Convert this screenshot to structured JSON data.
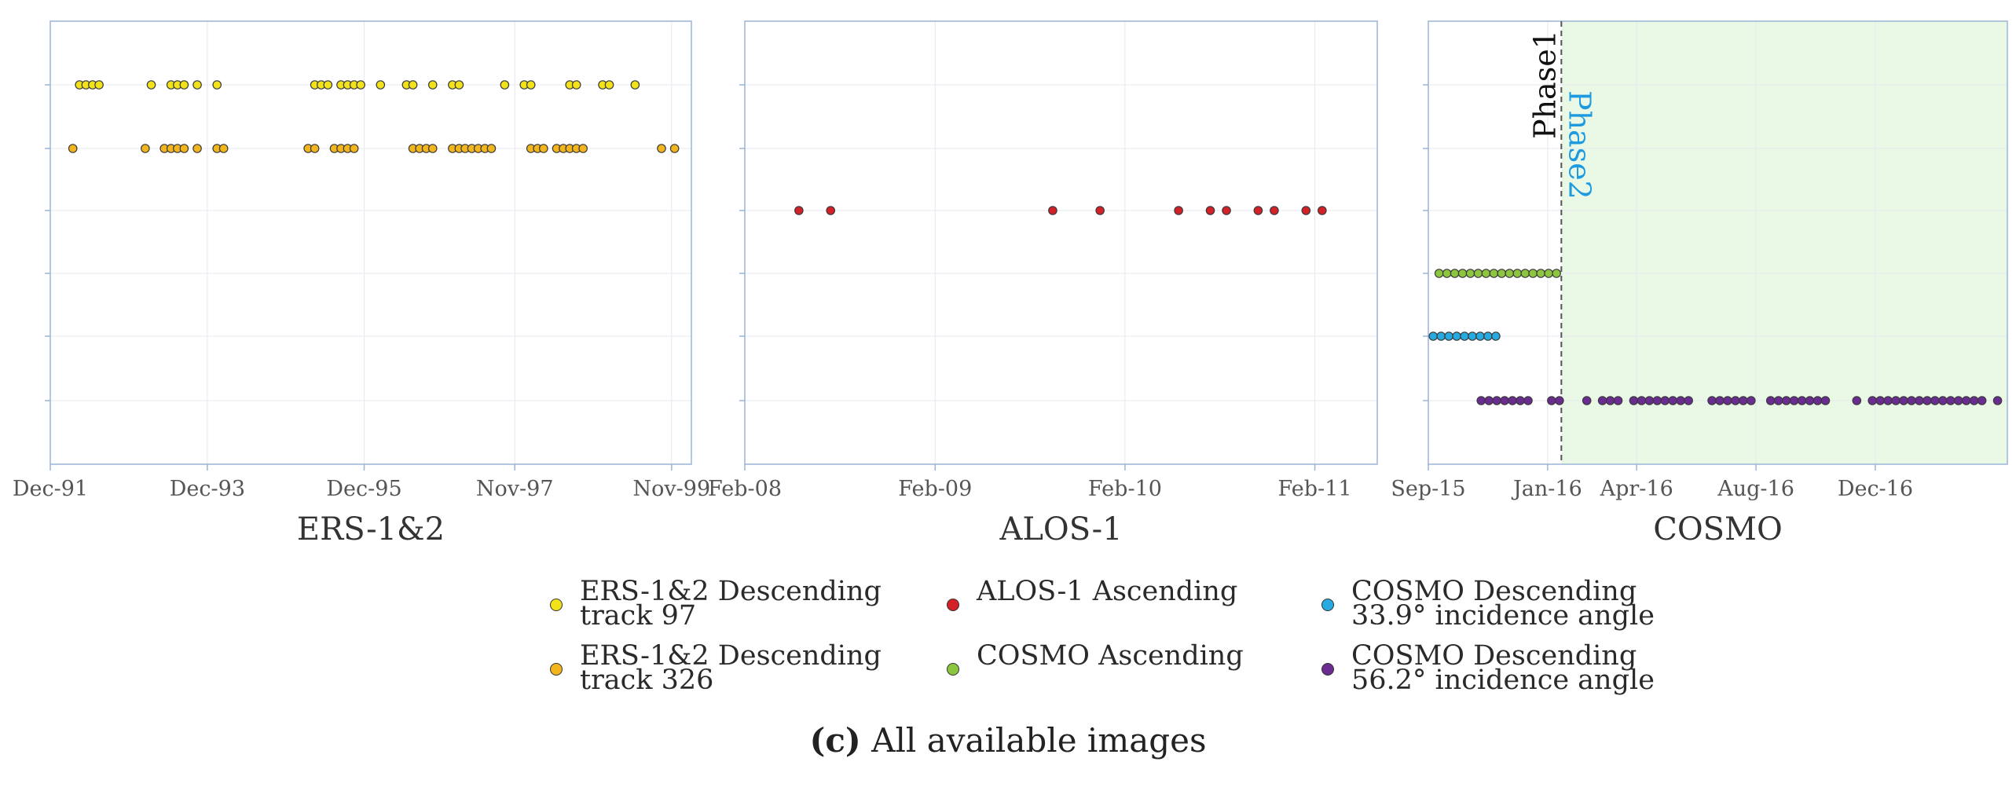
{
  "chart_data": [
    {
      "type": "scatter",
      "title": "ERS-1&2",
      "x_ticks": [
        "Dec-91",
        "Dec-93",
        "Dec-95",
        "Nov-97",
        "Nov-99"
      ],
      "xlim": [
        "1991-12",
        "2000-02"
      ],
      "series": [
        {
          "name": "ERS-1&2 Descending track 97",
          "row": 1,
          "color": "#f2e21a",
          "x": [
            "1992-04",
            "1992-05",
            "1992-06",
            "1992-07",
            "1993-03",
            "1993-06",
            "1993-07",
            "1993-08",
            "1993-10",
            "1994-01",
            "1995-04",
            "1995-05",
            "1995-06",
            "1995-08",
            "1995-09",
            "1995-10",
            "1995-11",
            "1996-02",
            "1996-06",
            "1996-07",
            "1996-10",
            "1997-01",
            "1997-02",
            "1997-09",
            "1997-12",
            "1998-01",
            "1998-07",
            "1998-08",
            "1998-12",
            "1999-01",
            "1999-05"
          ]
        },
        {
          "name": "ERS-1&2 Descending track 326",
          "row": 2,
          "color": "#f2b51e",
          "x": [
            "1992-03",
            "1993-02",
            "1993-05",
            "1993-06",
            "1993-07",
            "1993-08",
            "1993-10",
            "1994-01",
            "1994-02",
            "1995-03",
            "1995-04",
            "1995-07",
            "1995-08",
            "1995-09",
            "1995-10",
            "1996-07",
            "1996-08",
            "1996-09",
            "1996-10",
            "1997-01",
            "1997-02",
            "1997-03",
            "1997-04",
            "1997-05",
            "1997-06",
            "1997-07",
            "1998-01",
            "1998-02",
            "1998-03",
            "1998-05",
            "1998-06",
            "1998-07",
            "1998-08",
            "1998-09",
            "1999-09",
            "1999-11"
          ]
        }
      ]
    },
    {
      "type": "scatter",
      "title": "ALOS-1",
      "x_ticks": [
        "Feb-08",
        "Feb-09",
        "Feb-10",
        "Feb-11"
      ],
      "xlim": [
        "2008-02",
        "2011-06"
      ],
      "series": [
        {
          "name": "ALOS-1 Ascending",
          "row": 3,
          "color": "#d42027",
          "x": [
            "2008-05",
            "2008-07",
            "2009-09",
            "2009-12",
            "2010-05",
            "2010-07",
            "2010-08",
            "2010-10",
            "2010-11",
            "2011-01",
            "2011-02"
          ]
        }
      ]
    },
    {
      "type": "scatter",
      "title": "COSMO",
      "x_ticks": [
        "Sep-15",
        "Jan-16",
        "Apr-16",
        "Aug-16",
        "Dec-16"
      ],
      "xlim": [
        "2015-09-01",
        "2017-04-15"
      ],
      "phase_line": {
        "x": "2016-01-15",
        "labels": [
          "Phase1",
          "Phase2"
        ]
      },
      "phase2_shade_color": "#eaf8e6",
      "series": [
        {
          "name": "COSMO Ascending",
          "row": 4,
          "color": "#8cc63f",
          "x": [
            "2015-09-12",
            "2015-09-20",
            "2015-09-28",
            "2015-10-06",
            "2015-10-14",
            "2015-10-22",
            "2015-10-30",
            "2015-11-07",
            "2015-11-15",
            "2015-11-23",
            "2015-12-01",
            "2015-12-09",
            "2015-12-17",
            "2015-12-25",
            "2016-01-02",
            "2016-01-10"
          ]
        },
        {
          "name": "COSMO Descending 33.9° incidence angle",
          "row": 5,
          "color": "#27a9e1",
          "x": [
            "2015-09-06",
            "2015-09-14",
            "2015-09-22",
            "2015-09-30",
            "2015-10-08",
            "2015-10-16",
            "2015-10-24",
            "2015-11-01",
            "2015-11-09"
          ]
        },
        {
          "name": "COSMO Descending 56.2° incidence angle",
          "row": 6,
          "color": "#6a2c91",
          "x": [
            "2015-10-25",
            "2015-11-02",
            "2015-11-10",
            "2015-11-18",
            "2015-11-26",
            "2015-12-04",
            "2015-12-12",
            "2016-01-05",
            "2016-01-13",
            "2016-02-10",
            "2016-02-26",
            "2016-03-05",
            "2016-03-13",
            "2016-03-29",
            "2016-04-06",
            "2016-04-14",
            "2016-04-22",
            "2016-04-30",
            "2016-05-08",
            "2016-05-16",
            "2016-05-24",
            "2016-06-17",
            "2016-06-25",
            "2016-07-03",
            "2016-07-11",
            "2016-07-19",
            "2016-07-27",
            "2016-08-16",
            "2016-08-24",
            "2016-09-01",
            "2016-09-09",
            "2016-09-17",
            "2016-09-25",
            "2016-10-03",
            "2016-10-11",
            "2016-11-12",
            "2016-11-28",
            "2016-12-06",
            "2016-12-14",
            "2016-12-22",
            "2016-12-30",
            "2017-01-07",
            "2017-01-15",
            "2017-01-23",
            "2017-01-31",
            "2017-02-08",
            "2017-02-16",
            "2017-02-24",
            "2017-03-04",
            "2017-03-12",
            "2017-03-20",
            "2017-04-05"
          ]
        }
      ]
    }
  ],
  "legend": [
    {
      "label": "ERS-1&2 Descending\ntrack 97",
      "color": "#f2e21a"
    },
    {
      "label": "ALOS-1 Ascending",
      "color": "#d42027"
    },
    {
      "label": "COSMO Descending\n33.9° incidence angle",
      "color": "#27a9e1"
    },
    {
      "label": "ERS-1&2 Descending\ntrack 326",
      "color": "#f2b51e"
    },
    {
      "label": "COSMO Ascending",
      "color": "#8cc63f"
    },
    {
      "label": "COSMO Descending\n56.2° incidence angle",
      "color": "#6a2c91"
    }
  ],
  "caption": {
    "letter": "(c)",
    "text": " All available images"
  }
}
